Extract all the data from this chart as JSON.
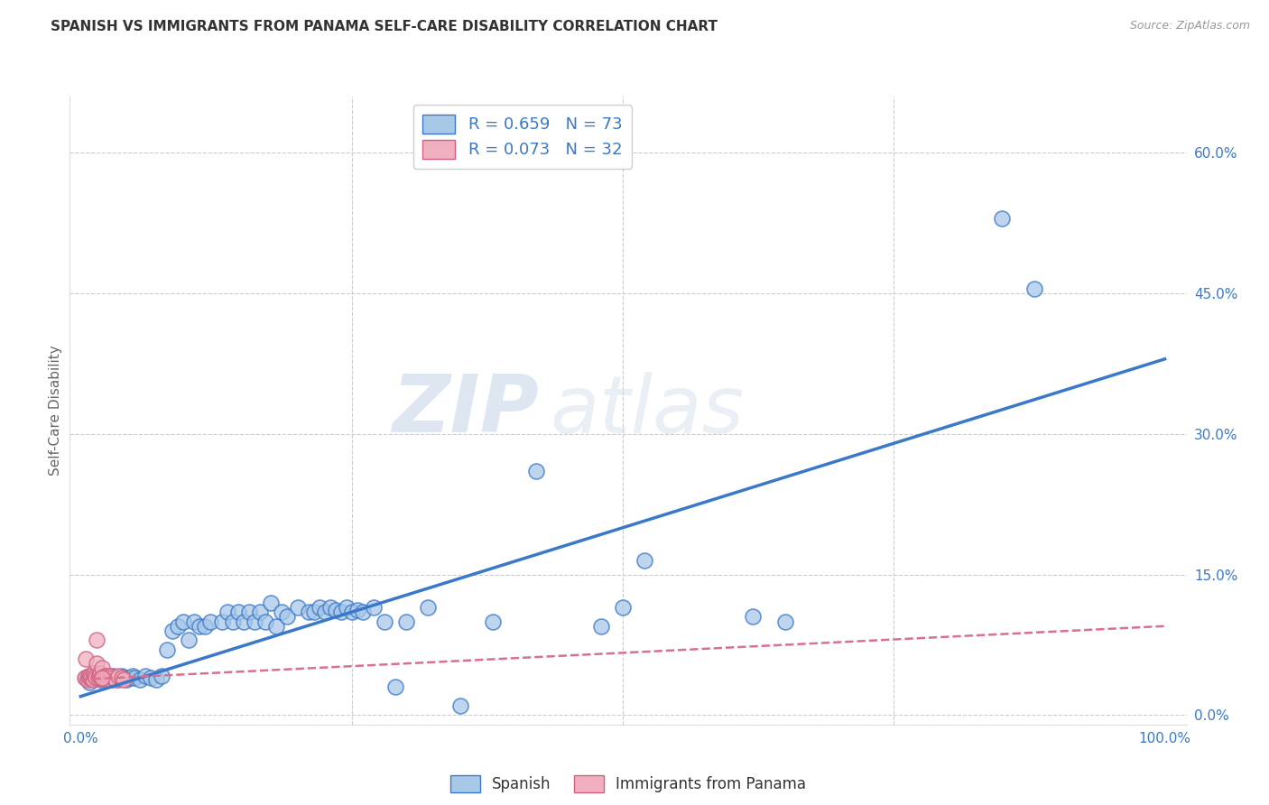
{
  "title": "SPANISH VS IMMIGRANTS FROM PANAMA SELF-CARE DISABILITY CORRELATION CHART",
  "source": "Source: ZipAtlas.com",
  "ylabel_label": "Self-Care Disability",
  "ylabel_values": [
    0.0,
    0.15,
    0.3,
    0.45,
    0.6
  ],
  "ylabel_labels": [
    "0.0%",
    "15.0%",
    "30.0%",
    "45.0%",
    "60.0%"
  ],
  "xlim": [
    -0.01,
    1.02
  ],
  "ylim": [
    -0.01,
    0.66
  ],
  "color_blue": "#a8c8e8",
  "color_pink": "#f0b0c0",
  "color_blue_dark": "#3a78c9",
  "color_pink_dark": "#d06080",
  "color_blue_line": "#3a78c9",
  "color_pink_line": "#d87090",
  "watermark_zip": "ZIP",
  "watermark_atlas": "atlas",
  "background_color": "#ffffff",
  "grid_color": "#cccccc",
  "blue_scatter_x": [
    0.005,
    0.008,
    0.01,
    0.012,
    0.015,
    0.018,
    0.02,
    0.022,
    0.025,
    0.028,
    0.03,
    0.032,
    0.035,
    0.038,
    0.04,
    0.042,
    0.045,
    0.048,
    0.05,
    0.055,
    0.06,
    0.065,
    0.07,
    0.075,
    0.08,
    0.085,
    0.09,
    0.095,
    0.1,
    0.105,
    0.11,
    0.115,
    0.12,
    0.13,
    0.135,
    0.14,
    0.145,
    0.15,
    0.155,
    0.16,
    0.165,
    0.17,
    0.175,
    0.18,
    0.185,
    0.19,
    0.2,
    0.21,
    0.215,
    0.22,
    0.225,
    0.23,
    0.235,
    0.24,
    0.245,
    0.25,
    0.255,
    0.26,
    0.27,
    0.28,
    0.29,
    0.3,
    0.32,
    0.35,
    0.38,
    0.42,
    0.48,
    0.5,
    0.52,
    0.62,
    0.65,
    0.85,
    0.88
  ],
  "blue_scatter_y": [
    0.04,
    0.035,
    0.04,
    0.045,
    0.04,
    0.038,
    0.04,
    0.042,
    0.04,
    0.038,
    0.042,
    0.04,
    0.038,
    0.042,
    0.04,
    0.038,
    0.04,
    0.042,
    0.04,
    0.038,
    0.042,
    0.04,
    0.038,
    0.042,
    0.07,
    0.09,
    0.095,
    0.1,
    0.08,
    0.1,
    0.095,
    0.095,
    0.1,
    0.1,
    0.11,
    0.1,
    0.11,
    0.1,
    0.11,
    0.1,
    0.11,
    0.1,
    0.12,
    0.095,
    0.11,
    0.105,
    0.115,
    0.11,
    0.11,
    0.115,
    0.11,
    0.115,
    0.112,
    0.11,
    0.115,
    0.11,
    0.112,
    0.11,
    0.115,
    0.1,
    0.03,
    0.1,
    0.115,
    0.01,
    0.1,
    0.26,
    0.095,
    0.115,
    0.165,
    0.105,
    0.1,
    0.53,
    0.455
  ],
  "pink_scatter_x": [
    0.004,
    0.005,
    0.006,
    0.007,
    0.008,
    0.009,
    0.01,
    0.011,
    0.012,
    0.013,
    0.014,
    0.015,
    0.016,
    0.017,
    0.018,
    0.019,
    0.02,
    0.021,
    0.022,
    0.023,
    0.024,
    0.025,
    0.026,
    0.027,
    0.028,
    0.03,
    0.032,
    0.035,
    0.038,
    0.04,
    0.015,
    0.02
  ],
  "pink_scatter_y": [
    0.04,
    0.06,
    0.038,
    0.042,
    0.04,
    0.042,
    0.04,
    0.038,
    0.045,
    0.042,
    0.04,
    0.055,
    0.04,
    0.042,
    0.045,
    0.04,
    0.05,
    0.04,
    0.042,
    0.04,
    0.038,
    0.042,
    0.04,
    0.038,
    0.042,
    0.04,
    0.038,
    0.042,
    0.04,
    0.038,
    0.08,
    0.04
  ],
  "blue_line_x": [
    0.0,
    1.0
  ],
  "blue_line_y": [
    0.02,
    0.38
  ],
  "pink_line_x": [
    0.0,
    1.0
  ],
  "pink_line_y": [
    0.038,
    0.095
  ]
}
